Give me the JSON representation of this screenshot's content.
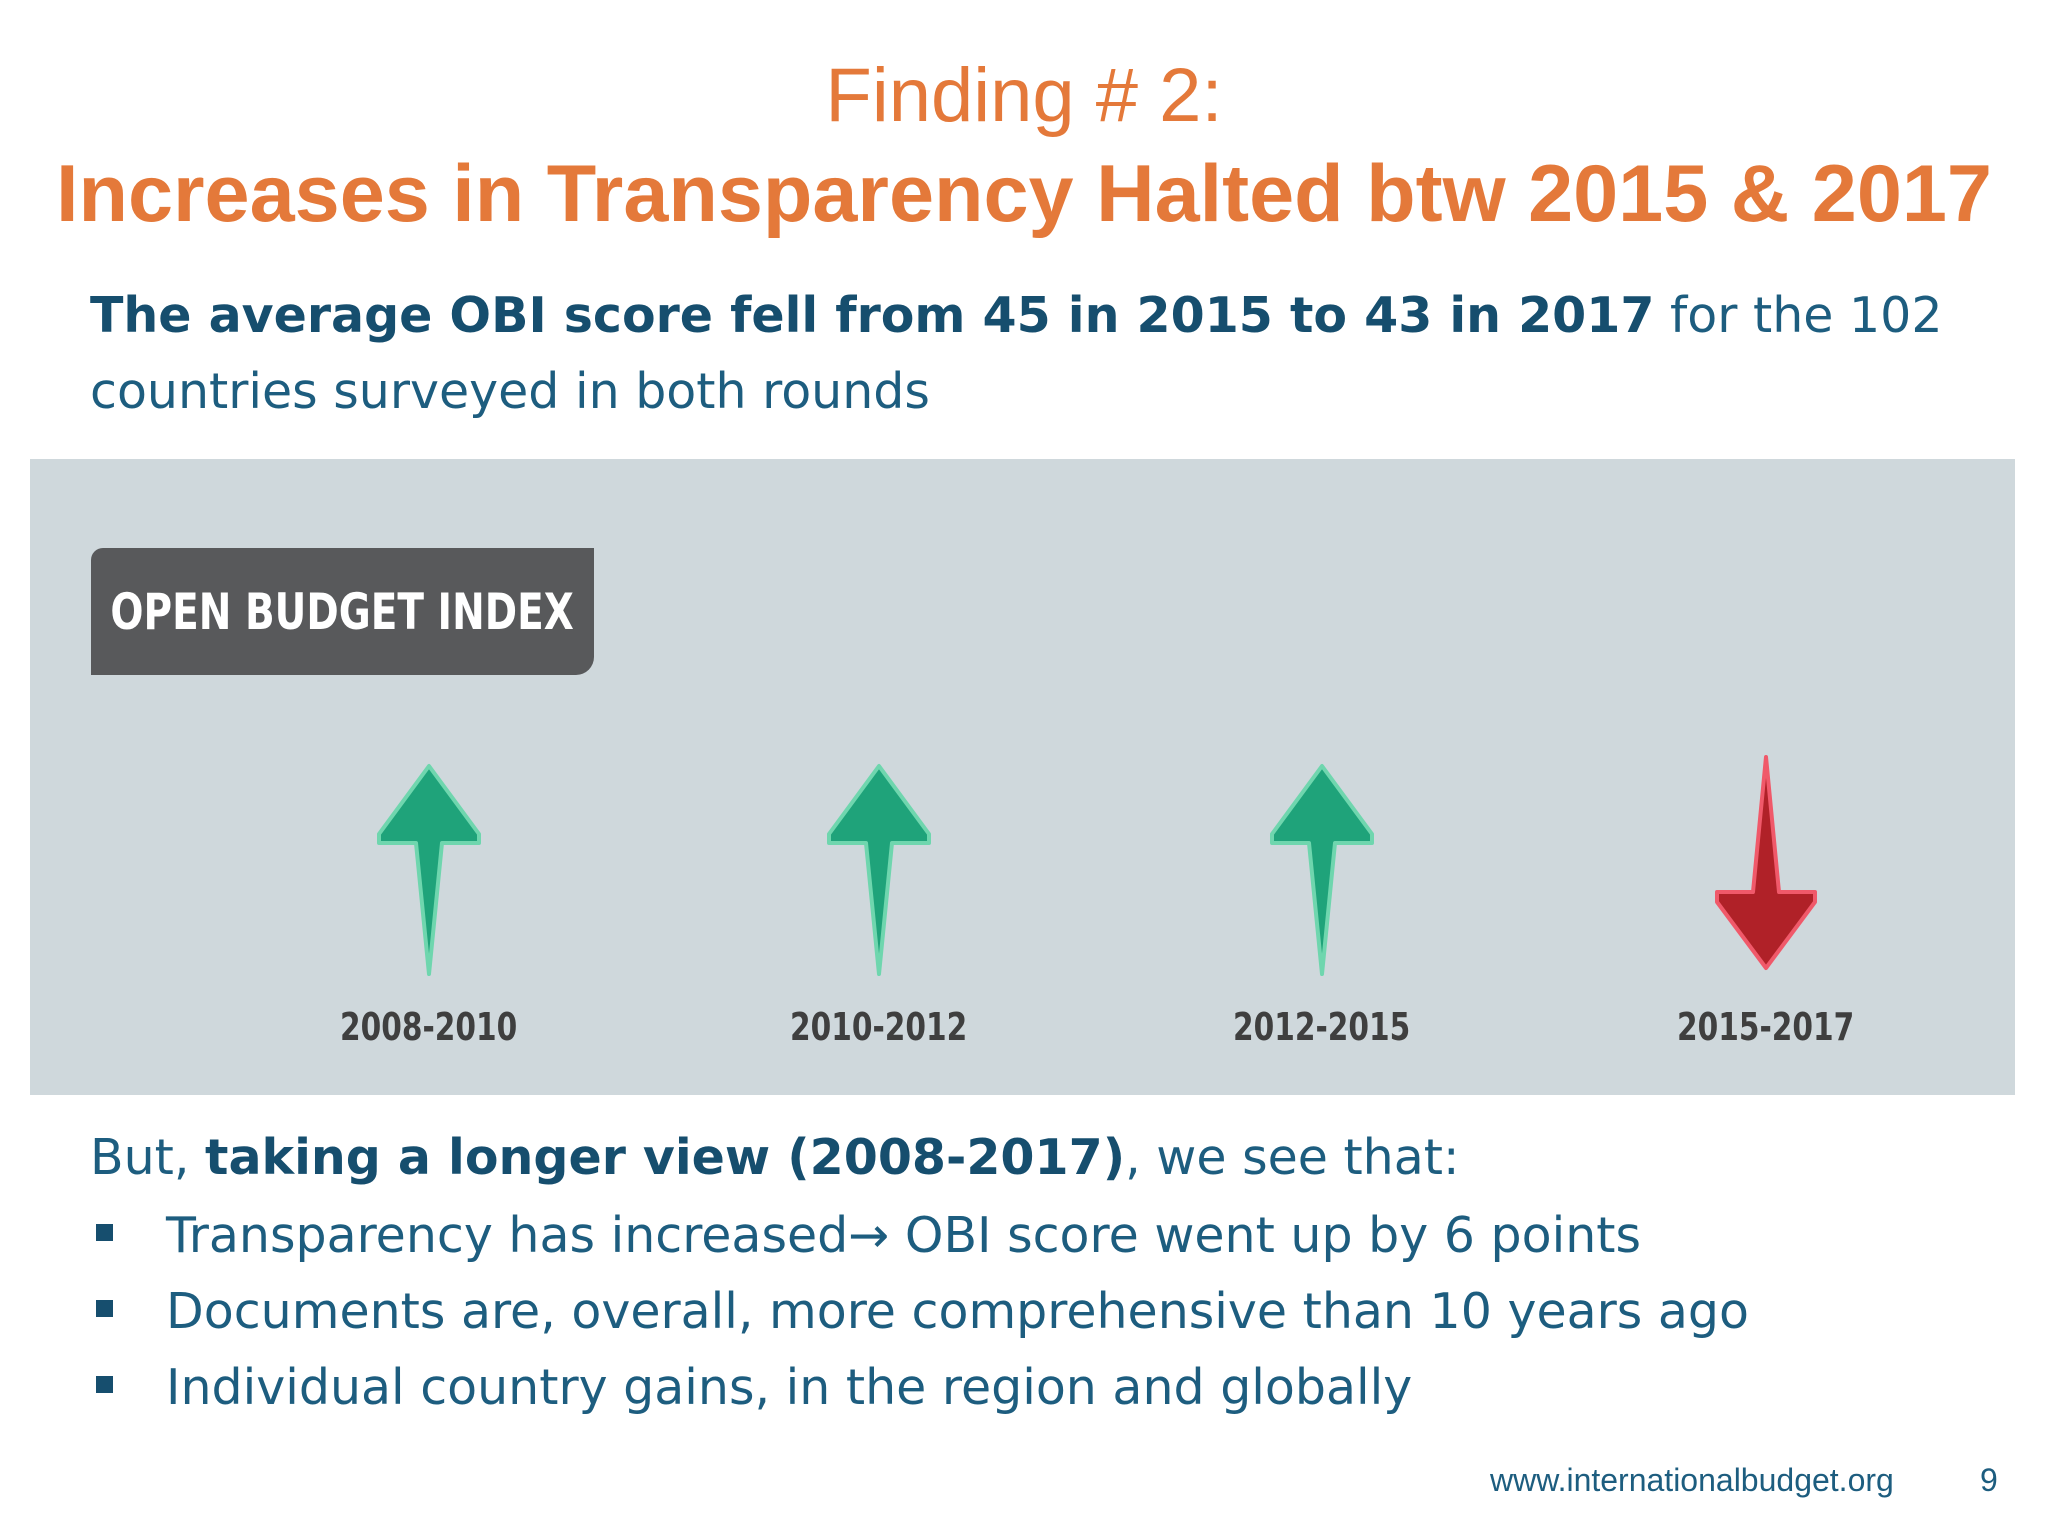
{
  "slide": {
    "title_line1": "Finding # 2:",
    "title_line2": "Increases in Transparency Halted btw 2015 & 2017",
    "title_color": "#e4793a",
    "intro_bold": "The average OBI score fell from 45 in 2015 to 43 in 2017",
    "intro_rest": " for the 102 countries surveyed in both rounds",
    "text_color": "#1d5d7f"
  },
  "obi_graphic": {
    "tag_label": "OPEN BUDGET INDEX",
    "panel_color": "#cfd8dc",
    "periods": [
      {
        "label": "2008-2010",
        "direction": "up",
        "icon": "up-arrow-icon",
        "color": "#1fa37a"
      },
      {
        "label": "2010-2012",
        "direction": "up",
        "icon": "up-arrow-icon",
        "color": "#1fa37a"
      },
      {
        "label": "2012-2015",
        "direction": "up",
        "icon": "up-arrow-icon",
        "color": "#1fa37a"
      },
      {
        "label": "2015-2017",
        "direction": "down",
        "icon": "down-arrow-icon",
        "color": "#b02128"
      }
    ]
  },
  "longer_view": {
    "prefix": "But, ",
    "bold": "taking a longer view (2008-2017)",
    "suffix": ", we see that:"
  },
  "bullets": [
    {
      "text_before": "Transparency has increased",
      "arrow": "→",
      "text_after": " OBI score went up by 6 points"
    },
    {
      "text": "Documents are, overall, more comprehensive than 10 years ago"
    },
    {
      "text": "Individual country gains, in the region and globally"
    }
  ],
  "footer": {
    "url": "www.internationalbudget.org",
    "page_number": "9"
  }
}
